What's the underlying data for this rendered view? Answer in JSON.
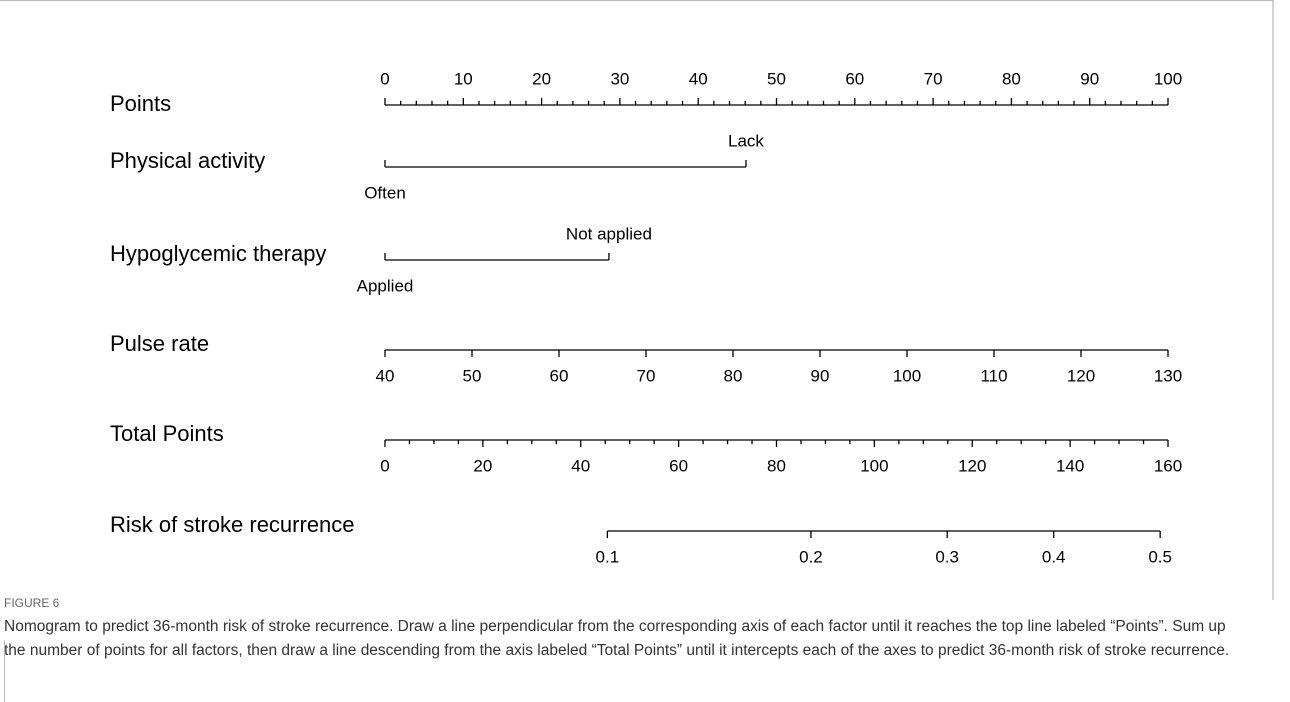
{
  "chart_data": {
    "type": "nomogram",
    "rows": [
      {
        "name": "Points",
        "kind": "scale",
        "lim": [
          0,
          100
        ],
        "span_points": [
          0,
          100
        ],
        "ticks": [
          0,
          10,
          20,
          30,
          40,
          50,
          60,
          70,
          80,
          90,
          100
        ],
        "minor_ticks": [
          2,
          4,
          6,
          8,
          12,
          14,
          16,
          18,
          22,
          24,
          26,
          28,
          32,
          34,
          36,
          38,
          42,
          44,
          46,
          48,
          52,
          54,
          56,
          58,
          62,
          64,
          66,
          68,
          72,
          74,
          76,
          78,
          82,
          84,
          86,
          88,
          92,
          94,
          96,
          98
        ],
        "tick_side": "up"
      },
      {
        "name": "Physical activity",
        "kind": "levels",
        "levels": [
          "Often",
          "Lack"
        ],
        "levels_points": [
          0,
          46.1
        ]
      },
      {
        "name": "Hypoglycemic therapy",
        "kind": "levels",
        "levels": [
          "Applied",
          "Not applied"
        ],
        "levels_points": [
          0,
          28.6
        ]
      },
      {
        "name": "Pulse rate",
        "kind": "scale",
        "lim": [
          40,
          130
        ],
        "span_points": [
          0,
          100
        ],
        "ticks": [
          40,
          50,
          60,
          70,
          80,
          90,
          100,
          110,
          120,
          130
        ],
        "tick_side": "down"
      },
      {
        "name": "Total Points",
        "kind": "scale",
        "lim": [
          0,
          160
        ],
        "span_points": [
          0,
          100
        ],
        "ticks": [
          0,
          20,
          40,
          60,
          80,
          100,
          120,
          140,
          160
        ],
        "minor_ticks": [
          5,
          10,
          15,
          25,
          30,
          35,
          45,
          50,
          55,
          65,
          70,
          75,
          85,
          90,
          95,
          105,
          110,
          115,
          125,
          130,
          135,
          145,
          150,
          155
        ],
        "tick_side": "down"
      },
      {
        "name": "Risk of stroke recurrence",
        "kind": "placed",
        "ticks": [
          0.1,
          0.2,
          0.3,
          0.4,
          0.5
        ],
        "tick_points": [
          28.4,
          54.4,
          71.8,
          85.4,
          99.0
        ],
        "tick_side": "down"
      }
    ]
  },
  "caption": {
    "label": "FIGURE 6",
    "text": "Nomogram to predict 36-month risk of stroke recurrence. Draw a line perpendicular from the corresponding axis of each factor until it reaches the top line labeled “Points”. Sum up the number of points for all factors, then draw a line descending from the axis labeled “Total Points” until it intercepts each of the axes to predict 36-month risk of stroke recurrence."
  }
}
